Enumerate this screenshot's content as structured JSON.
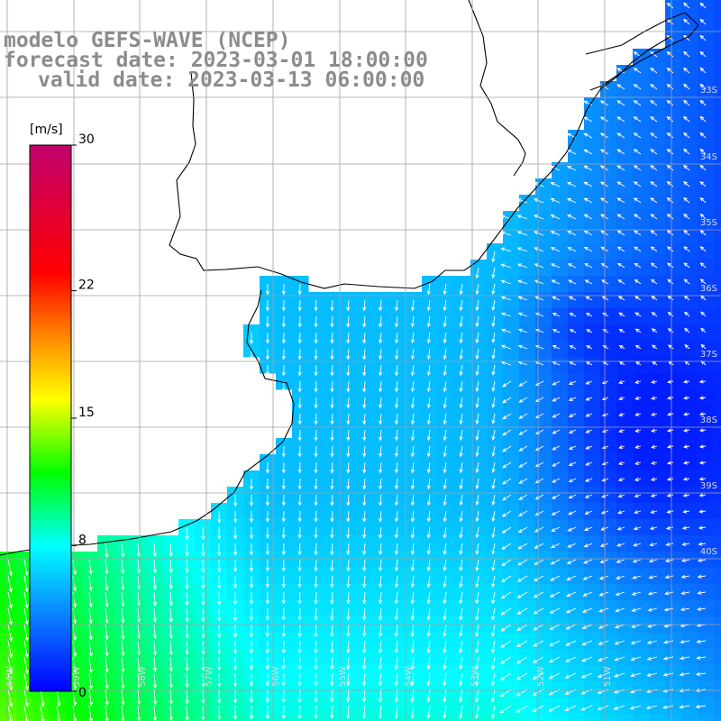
{
  "header": {
    "line1": "modelo GEFS-WAVE (NCEP)",
    "line2": "forecast date: 2023-03-01 18:00:00",
    "line3": "valid date: 2023-03-13 06:00:00"
  },
  "colorbar": {
    "unit": "[m/s]",
    "min": 0,
    "max": 30,
    "ticks": [
      {
        "value": 30,
        "label": "30"
      },
      {
        "value": 22,
        "label": "22"
      },
      {
        "value": 15,
        "label": "15"
      },
      {
        "value": 8,
        "label": "8"
      },
      {
        "value": 0,
        "label": "0"
      }
    ],
    "stops": [
      {
        "value": 0,
        "color": "#0000ff"
      },
      {
        "value": 4,
        "color": "#0a7cff"
      },
      {
        "value": 8,
        "color": "#00ffff"
      },
      {
        "value": 12,
        "color": "#00ff00"
      },
      {
        "value": 16,
        "color": "#ffff00"
      },
      {
        "value": 19,
        "color": "#ff9900"
      },
      {
        "value": 23,
        "color": "#ff0000"
      },
      {
        "value": 30,
        "color": "#c1006e"
      }
    ]
  },
  "map": {
    "lat_labels": [
      "33S",
      "34S",
      "35S",
      "36S",
      "37S",
      "38S",
      "39S",
      "40S"
    ],
    "lon_labels": [
      "60W",
      "59W",
      "58W",
      "57W",
      "56W",
      "55W",
      "54W",
      "53W",
      "52W",
      "51W"
    ],
    "colors": {
      "land": "#ffffff",
      "coastline": "#000000",
      "grid": "#a0a0a0",
      "arrows": "#ffffff"
    }
  }
}
